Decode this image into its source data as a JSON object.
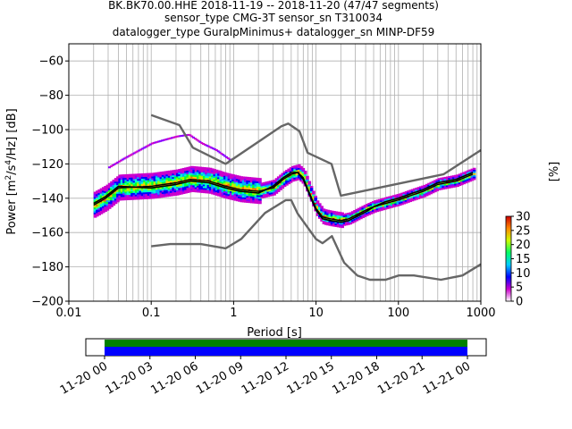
{
  "chart_data": {
    "type": "heatmap",
    "title_lines": [
      "BK.BK70.00.HHE   2018-11-19 -- 2018-11-20  (47/47 segments)",
      "sensor_type CMG-3T sensor_sn T310034",
      "datalogger_type GuralpMinimus+ datalogger_sn MINP-DF59"
    ],
    "xlabel": "Period [s]",
    "ylabel": "Power [m²/s⁴/Hz] [dB]",
    "xscale": "log",
    "xlim": [
      0.01,
      1000
    ],
    "ylim": [
      -200,
      -50
    ],
    "xticks": [
      0.01,
      0.1,
      1,
      10,
      100,
      1000
    ],
    "xtick_labels": [
      "0.01",
      "0.1",
      "1",
      "10",
      "100",
      "1000"
    ],
    "yticks": [
      -200,
      -180,
      -160,
      -140,
      -120,
      -100,
      -80,
      -60
    ],
    "ytick_labels": [
      "−200",
      "−180",
      "−160",
      "−140",
      "−120",
      "−100",
      "−80",
      "−60"
    ],
    "grid": true,
    "colorbar": {
      "label": "[%]",
      "range": [
        0,
        30
      ],
      "ticks": [
        0,
        5,
        10,
        15,
        20,
        25,
        30
      ],
      "colors": [
        "#ffffff",
        "#cc00cc",
        "#0000ff",
        "#00ccff",
        "#00ff66",
        "#ccff00",
        "#ff8800",
        "#cc0000"
      ]
    },
    "nhnm": {
      "period": [
        0.1,
        0.22,
        0.32,
        0.8,
        3.8,
        4.6,
        6.3,
        7.9,
        15.4,
        20,
        354.8,
        1000
      ],
      "power": [
        -91.5,
        -97.4,
        -110.5,
        -120,
        -98,
        -96.5,
        -101,
        -113.5,
        -120,
        -138.5,
        -126,
        -112
      ]
    },
    "nlnm": {
      "period": [
        0.1,
        0.17,
        0.4,
        0.8,
        1.24,
        2.4,
        4.3,
        5,
        6,
        10,
        12,
        15.6,
        21.9,
        31.6,
        45,
        70,
        101,
        154,
        328,
        600,
        1000
      ],
      "power": [
        -168,
        -166.7,
        -166.7,
        -169.2,
        -163.7,
        -148.6,
        -141.1,
        -141.1,
        -149,
        -163.8,
        -166.2,
        -162.1,
        -177.5,
        -185,
        -187.5,
        -187.5,
        -185,
        -185,
        -187.5,
        -185,
        -178.5
      ]
    },
    "median": {
      "period": [
        0.02,
        0.028,
        0.04,
        0.1,
        0.2,
        0.3,
        0.5,
        0.8,
        1.2,
        2,
        3,
        4,
        5,
        6,
        7,
        8,
        10,
        12,
        15,
        20,
        25,
        30,
        40,
        50,
        70,
        100,
        150,
        200,
        300,
        500,
        800
      ],
      "power": [
        -144,
        -140,
        -134,
        -133,
        -131,
        -129,
        -130,
        -133,
        -135,
        -136,
        -134,
        -129,
        -126,
        -125,
        -128,
        -135,
        -146,
        -151,
        -152,
        -153,
        -152,
        -150,
        -147,
        -145,
        -143,
        -141,
        -138,
        -136,
        -132,
        -130,
        -126
      ]
    },
    "mode": {
      "period": [
        0.02,
        0.028,
        0.04,
        0.1,
        0.2,
        0.3,
        0.5,
        0.8,
        1.2,
        2,
        3,
        4,
        5,
        6,
        7,
        8,
        10,
        12,
        15,
        20,
        25,
        30,
        40,
        50,
        70,
        100,
        150,
        200,
        300,
        500,
        800
      ],
      "power": [
        -143,
        -139,
        -133,
        -134,
        -132,
        -130,
        -131,
        -134,
        -136,
        -137,
        -133,
        -128,
        -125,
        -125,
        -129,
        -136,
        -147,
        -152,
        -153,
        -154,
        -153,
        -151,
        -148,
        -145,
        -142,
        -140,
        -137,
        -135,
        -131,
        -129,
        -125
      ]
    },
    "upper_scatter": {
      "period": [
        0.03,
        0.045,
        0.07,
        0.1,
        0.14,
        0.2,
        0.28,
        0.4,
        0.6,
        0.9
      ],
      "power": [
        -122,
        -117,
        -112,
        -108,
        -106,
        -104,
        -103,
        -108,
        -112,
        -118
      ]
    },
    "time_axis": {
      "tick_labels": [
        "11-20 00",
        "11-20 03",
        "11-20 06",
        "11-20 09",
        "11-20 12",
        "11-20 15",
        "11-20 18",
        "11-20 21",
        "11-21 00"
      ]
    }
  }
}
